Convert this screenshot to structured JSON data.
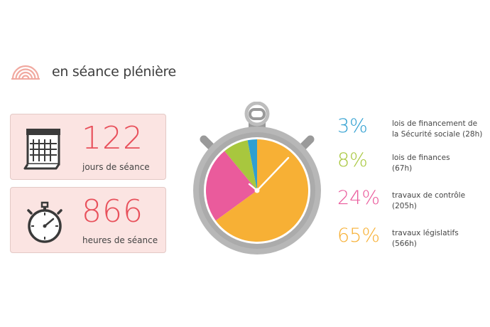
{
  "header": {
    "title": "en séance plénière",
    "icon": "arcs-icon",
    "icon_color": "#f1a9a0"
  },
  "stats": [
    {
      "value": "122",
      "label": "jours de séance",
      "icon": "calendar-icon"
    },
    {
      "value": "866",
      "label": "heures de séance",
      "icon": "stopwatch-icon"
    }
  ],
  "colors": {
    "accent": "#e8505b",
    "card_bg": "#fbe4e2"
  },
  "chart_data": {
    "type": "pie",
    "categories": [
      "lois de financement de la Sécurité sociale (28h)",
      "lois de finances (67h)",
      "travaux de contrôle (205h)",
      "travaux législatifs (566h)"
    ],
    "values": [
      3,
      8,
      24,
      65
    ],
    "hours": [
      28,
      67,
      205,
      566
    ],
    "colors": [
      "#2f9fd1",
      "#a8c73e",
      "#ea5b9c",
      "#f7b035"
    ],
    "legend": [
      {
        "pct": "3%",
        "line1": "lois de financement de",
        "line2": "la Sécurité sociale (28h)",
        "color": "#2f9fd1"
      },
      {
        "pct": "8%",
        "line1": "lois de finances",
        "line2": "(67h)",
        "color": "#a8c73e"
      },
      {
        "pct": "24%",
        "line1": "travaux de contrôle",
        "line2": "(205h)",
        "color": "#ea5b9c"
      },
      {
        "pct": "65%",
        "line1": "travaux législatifs",
        "line2": "(566h)",
        "color": "#f7b035"
      }
    ],
    "legend_position": "right"
  }
}
